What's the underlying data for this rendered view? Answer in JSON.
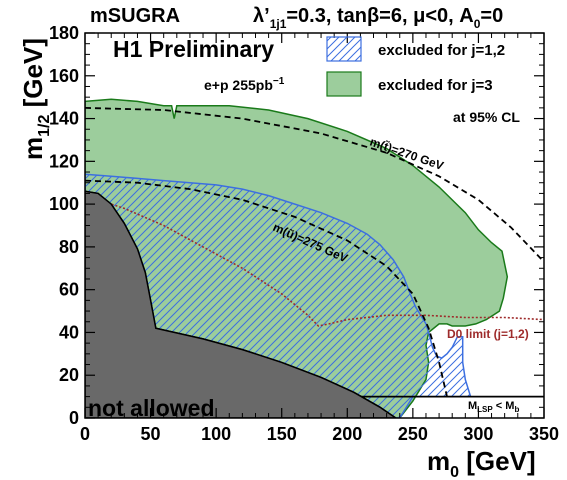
{
  "header": {
    "model": "mSUGRA",
    "lambda": "λ’",
    "lambda_sub": "1j1",
    "params_a": "=0.3, tanβ=6, μ<0, A",
    "params_sub": "0",
    "params_b": "=0"
  },
  "chart_data": {
    "type": "area",
    "title": "H1 Preliminary",
    "xlabel": "m",
    "xlabel_sub": "0",
    "xlabel_unit": " [GeV]",
    "ylabel": "m",
    "ylabel_sub": "1/2",
    "ylabel_unit": " [GeV]",
    "xlim": [
      0,
      350
    ],
    "ylim": [
      0,
      180
    ],
    "xticks": [
      0,
      50,
      100,
      150,
      200,
      250,
      300,
      350
    ],
    "yticks": [
      0,
      20,
      40,
      60,
      80,
      100,
      120,
      140,
      160,
      180
    ],
    "xtick_labels": [
      "0",
      "50",
      "100",
      "150",
      "200",
      "250",
      "300",
      "350"
    ],
    "ytick_labels": [
      "0",
      "20",
      "40",
      "60",
      "80",
      "100",
      "120",
      "140",
      "160",
      "180"
    ],
    "luminosity": {
      "text": "e+p 255pb",
      "sup": "−1"
    },
    "cl_label": "at 95% CL",
    "legend": {
      "placement": "top-right",
      "entries": [
        {
          "label": "excluded for j=1,2",
          "style": "hatched",
          "color": "#3c6fe0"
        },
        {
          "label": "excluded for j=3",
          "style": "filled",
          "color": "#9ccd9c",
          "edge": "#1a7a1a"
        }
      ]
    },
    "series": [
      {
        "name": "excluded for j=3",
        "kind": "filled-region",
        "color": "#9ccd9c",
        "points": [
          [
            0,
            0
          ],
          [
            0,
            148
          ],
          [
            20,
            149
          ],
          [
            40,
            148
          ],
          [
            60,
            146
          ],
          [
            66,
            146
          ],
          [
            68,
            140
          ],
          [
            70,
            146
          ],
          [
            80,
            146
          ],
          [
            110,
            146
          ],
          [
            140,
            144
          ],
          [
            170,
            140
          ],
          [
            200,
            134
          ],
          [
            230,
            126
          ],
          [
            250,
            118
          ],
          [
            270,
            108
          ],
          [
            290,
            96
          ],
          [
            300,
            88
          ],
          [
            310,
            82
          ],
          [
            318,
            78
          ],
          [
            322,
            66
          ],
          [
            319,
            56
          ],
          [
            316,
            50
          ],
          [
            306,
            46
          ],
          [
            298,
            44
          ],
          [
            290,
            43
          ],
          [
            280,
            43
          ],
          [
            276,
            44
          ],
          [
            270,
            44
          ],
          [
            262,
            40
          ],
          [
            260,
            34
          ],
          [
            262,
            26
          ],
          [
            260,
            18
          ],
          [
            250,
            8
          ],
          [
            240,
            0
          ]
        ]
      },
      {
        "name": "excluded for j=1,2",
        "kind": "hatched-region",
        "color": "#3c6fe0",
        "points": [
          [
            0,
            0
          ],
          [
            0,
            114
          ],
          [
            20,
            113
          ],
          [
            40,
            112
          ],
          [
            60,
            111
          ],
          [
            80,
            110
          ],
          [
            100,
            109
          ],
          [
            120,
            107
          ],
          [
            140,
            104
          ],
          [
            160,
            100
          ],
          [
            180,
            96
          ],
          [
            200,
            91
          ],
          [
            215,
            86
          ],
          [
            225,
            81
          ],
          [
            235,
            74
          ],
          [
            243,
            66
          ],
          [
            248,
            58
          ],
          [
            252,
            52
          ],
          [
            256,
            48
          ],
          [
            260,
            44
          ],
          [
            262,
            40
          ],
          [
            265,
            33
          ],
          [
            268,
            29
          ],
          [
            272,
            28
          ],
          [
            276,
            30
          ],
          [
            280,
            33
          ],
          [
            284,
            38
          ],
          [
            288,
            38
          ],
          [
            288,
            26
          ],
          [
            290,
            18
          ],
          [
            294,
            10
          ],
          [
            288,
            10
          ],
          [
            280,
            10
          ],
          [
            270,
            10
          ],
          [
            262,
            10
          ],
          [
            250,
            10
          ],
          [
            240,
            0
          ]
        ]
      },
      {
        "name": "not allowed",
        "kind": "filled-region",
        "color": "#696969",
        "points": [
          [
            0,
            0
          ],
          [
            0,
            106
          ],
          [
            10,
            105
          ],
          [
            20,
            100
          ],
          [
            30,
            91
          ],
          [
            40,
            79
          ],
          [
            46,
            68
          ],
          [
            50,
            55
          ],
          [
            54,
            42
          ],
          [
            90,
            37
          ],
          [
            120,
            32
          ],
          [
            150,
            26
          ],
          [
            180,
            19
          ],
          [
            205,
            12
          ],
          [
            225,
            5
          ],
          [
            237,
            0
          ]
        ]
      },
      {
        "name": "m(ũ)=275 GeV",
        "kind": "dashed-line",
        "color": "#000000",
        "points": [
          [
            0,
            111
          ],
          [
            40,
            110
          ],
          [
            80,
            107
          ],
          [
            120,
            102
          ],
          [
            160,
            94
          ],
          [
            200,
            83
          ],
          [
            230,
            71
          ],
          [
            250,
            58
          ],
          [
            262,
            42
          ],
          [
            270,
            26
          ],
          [
            276,
            10
          ]
        ]
      },
      {
        "name": "m(t̃)=270 GeV",
        "kind": "dashed-line",
        "color": "#000000",
        "points": [
          [
            0,
            145
          ],
          [
            60,
            144
          ],
          [
            120,
            140
          ],
          [
            180,
            133
          ],
          [
            230,
            124
          ],
          [
            270,
            113
          ],
          [
            300,
            102
          ],
          [
            325,
            89
          ],
          [
            350,
            73
          ]
        ]
      },
      {
        "name": "D0 limit (j=1,2)",
        "kind": "dotted-line",
        "color": "#9e2b2b",
        "points": [
          [
            0,
            104
          ],
          [
            30,
            98
          ],
          [
            60,
            90
          ],
          [
            90,
            80
          ],
          [
            120,
            70
          ],
          [
            150,
            58
          ],
          [
            170,
            48
          ],
          [
            178,
            43
          ],
          [
            186,
            44
          ],
          [
            200,
            46
          ],
          [
            230,
            48
          ],
          [
            260,
            48
          ],
          [
            290,
            47
          ],
          [
            320,
            47
          ],
          [
            350,
            46
          ]
        ]
      },
      {
        "name": "M_LSP < M_b",
        "kind": "solid-line",
        "color": "#000000",
        "points": [
          [
            0,
            10
          ],
          [
            350,
            10
          ]
        ]
      }
    ],
    "annotations": [
      {
        "text": "m(t̃)=270 GeV",
        "color": "#000000"
      },
      {
        "text": "m(ũ)=275 GeV",
        "color": "#000000"
      },
      {
        "text": "D0 limit (j=1,2)",
        "color": "#9e2b2b"
      },
      {
        "text": "not allowed",
        "color": "#000000"
      },
      {
        "text": "M",
        "sub": "LSP",
        "rest": " < M",
        "sub2": "b",
        "color": "#000000"
      }
    ]
  }
}
